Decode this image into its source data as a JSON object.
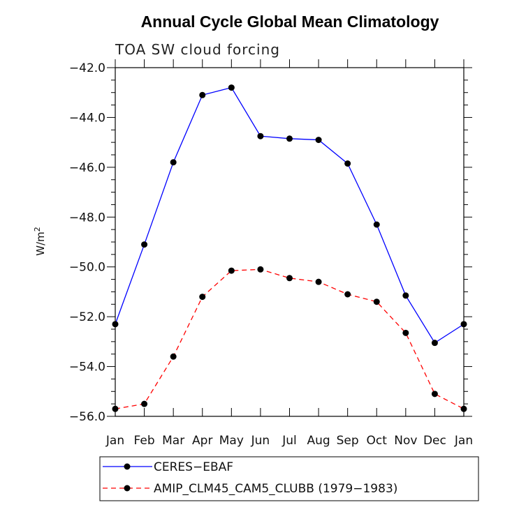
{
  "chart_data": {
    "type": "line",
    "title": "Annual Cycle Global Mean Climatology",
    "subtitle": "TOA SW cloud forcing",
    "ylabel": "W/m",
    "ylabel_superscript": "2",
    "xlabel": "",
    "categories": [
      "Jan",
      "Feb",
      "Mar",
      "Apr",
      "May",
      "Jun",
      "Jul",
      "Aug",
      "Sep",
      "Oct",
      "Nov",
      "Dec",
      "Jan"
    ],
    "ylim": [
      -56.0,
      -42.0
    ],
    "yticks": [
      "-42.0",
      "-44.0",
      "-46.0",
      "-48.0",
      "-50.0",
      "-52.0",
      "-54.0",
      "-56.0"
    ],
    "grid": false,
    "legend_position": "bottom",
    "series": [
      {
        "name": "CERES-EBAF",
        "color": "#0000ff",
        "dash": "solid",
        "values": [
          -52.3,
          -49.1,
          -45.8,
          -43.1,
          -42.8,
          -44.75,
          -44.85,
          -44.9,
          -45.85,
          -48.3,
          -51.15,
          -53.05,
          -52.3
        ]
      },
      {
        "name": "AMIP_CLM45_CAM5_CLUBB (1979-1983)",
        "color": "#ff0000",
        "dash": "dashed",
        "values": [
          -55.7,
          -55.5,
          -53.6,
          -51.2,
          -50.15,
          -50.1,
          -50.45,
          -50.6,
          -51.1,
          -51.4,
          -52.65,
          -55.1,
          -55.7
        ]
      }
    ]
  }
}
